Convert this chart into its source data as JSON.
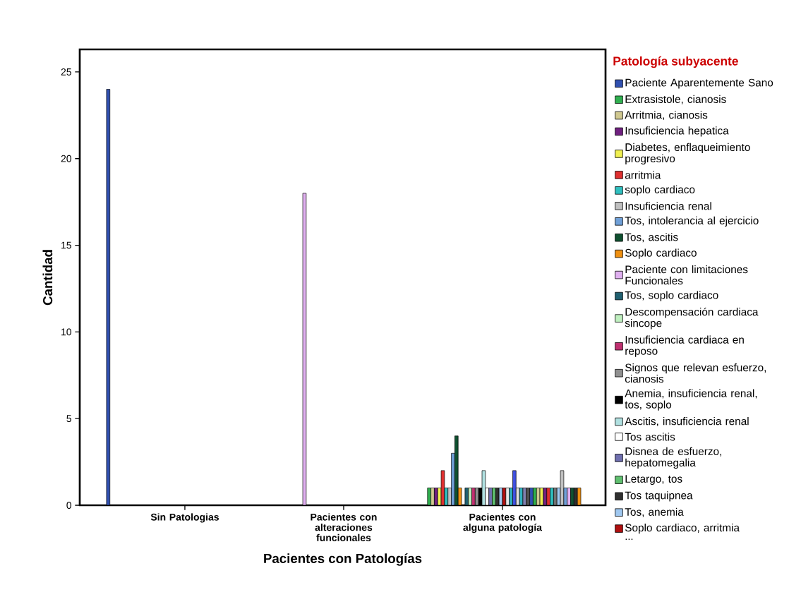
{
  "chart_data": {
    "type": "bar",
    "categories": [
      "Sin Patologias",
      "Pacientes con alteraciones funcionales",
      "Pacientes con alguna patología"
    ],
    "xlabel": "Pacientes con Patologías",
    "ylabel": "Cantidad",
    "legend_title": "Patología subyacente",
    "legend": "right",
    "ylim": [
      0,
      26.3
    ],
    "yticks": [
      0,
      5,
      10,
      15,
      20,
      25
    ],
    "annotations": [
      "..."
    ],
    "series": [
      {
        "name": "Paciente Aparentemente Sano",
        "color": "#3050b0",
        "values": [
          24,
          null,
          null
        ]
      },
      {
        "name": "Extrasistole, cianosis",
        "color": "#30b050",
        "values": [
          null,
          null,
          1
        ]
      },
      {
        "name": "Arritmia, cianosis",
        "color": "#d0c890",
        "values": [
          null,
          null,
          1
        ]
      },
      {
        "name": "Insuficiencia hepatica",
        "color": "#702080",
        "values": [
          null,
          null,
          1
        ]
      },
      {
        "name": "Diabetes, enflaqueimiento progresivo",
        "color": "#f0f050",
        "values": [
          null,
          null,
          1
        ]
      },
      {
        "name": "arritmia",
        "color": "#e03030",
        "values": [
          null,
          null,
          2
        ]
      },
      {
        "name": "soplo cardiaco",
        "color": "#30c0c0",
        "values": [
          null,
          null,
          1
        ]
      },
      {
        "name": "Insuficiencia renal",
        "color": "#c0c0c0",
        "values": [
          null,
          null,
          1
        ]
      },
      {
        "name": "Tos, intolerancia al ejercicio",
        "color": "#70a0d8",
        "values": [
          null,
          null,
          3
        ]
      },
      {
        "name": "Tos, ascitis",
        "color": "#105030",
        "values": [
          null,
          null,
          4
        ]
      },
      {
        "name": "Soplo cardiaco",
        "color": "#f09010",
        "values": [
          null,
          null,
          1
        ]
      },
      {
        "name": "Paciente con limitaciones Funcionales",
        "color": "#e0b0f0",
        "values": [
          null,
          18,
          null
        ]
      },
      {
        "name": "Tos, soplo cardiaco",
        "color": "#206070",
        "values": [
          null,
          null,
          1
        ]
      },
      {
        "name": "Descompensación cardiaca sincope",
        "color": "#c0f0c0",
        "values": [
          null,
          null,
          1
        ]
      },
      {
        "name": "Insuficiencia cardiaca en reposo",
        "color": "#c03070",
        "values": [
          null,
          null,
          1
        ]
      },
      {
        "name": "Signos que relevan esfuerzo, cianosis",
        "color": "#909090",
        "values": [
          null,
          null,
          1
        ]
      },
      {
        "name": "Anemia, insuficiencia renal, tos, soplo",
        "color": "#000000",
        "values": [
          null,
          null,
          1
        ]
      },
      {
        "name": "Ascitis, insuficiencia renal",
        "color": "#b0e0e0",
        "values": [
          null,
          null,
          2
        ]
      },
      {
        "name": "Tos ascitis",
        "color": "#ffffff",
        "values": [
          null,
          null,
          1
        ]
      },
      {
        "name": "Disnea de esfuerzo, hepatomegalia",
        "color": "#7070b0",
        "values": [
          null,
          null,
          1
        ]
      },
      {
        "name": "Letargo, tos",
        "color": "#60c070",
        "values": [
          null,
          null,
          1
        ]
      },
      {
        "name": "Tos taquipnea",
        "color": "#303030",
        "values": [
          null,
          null,
          1
        ]
      },
      {
        "name": "Tos, anemia",
        "color": "#a0c8f0",
        "values": [
          null,
          null,
          1
        ]
      },
      {
        "name": "Soplo cardiaco, arritmia",
        "color": "#b01010",
        "values": [
          null,
          null,
          1
        ]
      },
      {
        "color": "#e8e8e8",
        "values": [
          null,
          null,
          1
        ]
      },
      {
        "color": "#30b0c0",
        "values": [
          null,
          null,
          1
        ]
      },
      {
        "color": "#4050e0",
        "values": [
          null,
          null,
          2
        ]
      },
      {
        "color": "#e0e0e0",
        "values": [
          null,
          null,
          1
        ]
      },
      {
        "color": "#30b0c0",
        "values": [
          null,
          null,
          1
        ]
      },
      {
        "color": "#8080b0",
        "values": [
          null,
          null,
          1
        ]
      },
      {
        "color": "#505050",
        "values": [
          null,
          null,
          1
        ]
      },
      {
        "color": "#3050b0",
        "values": [
          null,
          null,
          1
        ]
      },
      {
        "color": "#30b050",
        "values": [
          null,
          null,
          1
        ]
      },
      {
        "color": "#d0c890",
        "values": [
          null,
          null,
          1
        ]
      },
      {
        "color": "#f0f050",
        "values": [
          null,
          null,
          1
        ]
      },
      {
        "color": "#702080",
        "values": [
          null,
          null,
          1
        ]
      },
      {
        "color": "#e03030",
        "values": [
          null,
          null,
          1
        ]
      },
      {
        "color": "#30c0c0",
        "values": [
          null,
          null,
          1
        ]
      },
      {
        "color": "#707070",
        "values": [
          null,
          null,
          1
        ]
      },
      {
        "color": "#a0c8f0",
        "values": [
          null,
          null,
          1
        ]
      },
      {
        "color": "#c0c0c0",
        "values": [
          null,
          null,
          2
        ]
      },
      {
        "color": "#70a0d8",
        "values": [
          null,
          null,
          1
        ]
      },
      {
        "color": "#e0b0f0",
        "values": [
          null,
          null,
          1
        ]
      },
      {
        "color": "#105030",
        "values": [
          null,
          null,
          1
        ]
      },
      {
        "color": "#303030",
        "values": [
          null,
          null,
          1
        ]
      },
      {
        "color": "#f09010",
        "values": [
          null,
          null,
          1
        ]
      }
    ]
  }
}
